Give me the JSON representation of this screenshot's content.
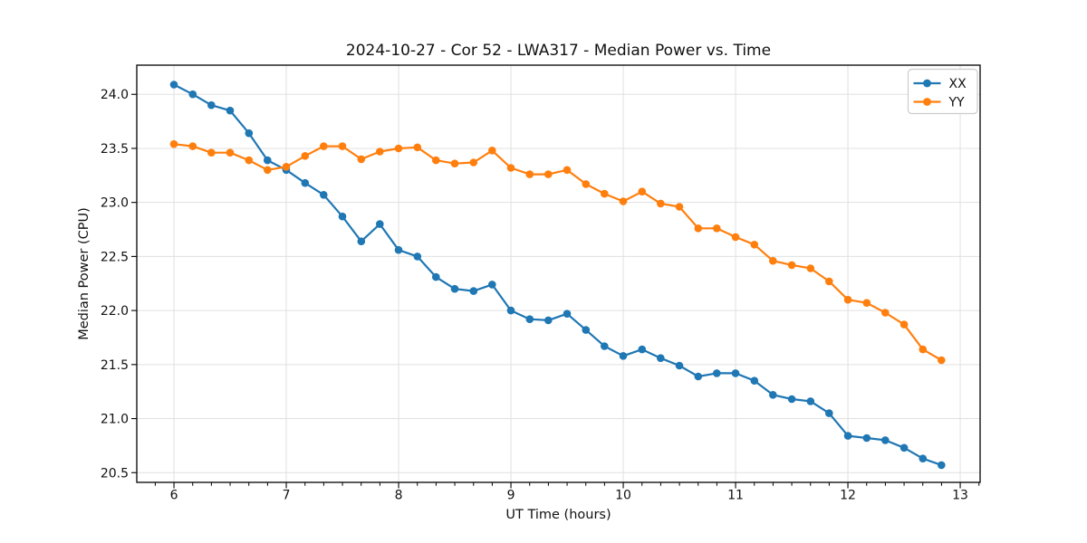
{
  "chart_data": {
    "type": "line",
    "title": "2024-10-27 - Cor 52 - LWA317 - Median Power vs. Time",
    "xlabel": "UT Time (hours)",
    "ylabel": "Median Power (CPU)",
    "xlim": [
      5.669,
      13.177
    ],
    "ylim": [
      20.41,
      24.27
    ],
    "xticks": [
      6,
      7,
      8,
      9,
      10,
      11,
      12,
      13
    ],
    "yticks": [
      20.5,
      21.0,
      21.5,
      22.0,
      22.5,
      23.0,
      23.5,
      24.0
    ],
    "x_minor_step": 0.16667,
    "grid": true,
    "legend": {
      "position": "upper right"
    },
    "x": [
      6.0,
      6.167,
      6.333,
      6.5,
      6.667,
      6.833,
      7.0,
      7.167,
      7.333,
      7.5,
      7.667,
      7.833,
      8.0,
      8.167,
      8.333,
      8.5,
      8.667,
      8.833,
      9.0,
      9.167,
      9.333,
      9.5,
      9.667,
      9.833,
      10.0,
      10.167,
      10.333,
      10.5,
      10.667,
      10.833,
      11.0,
      11.167,
      11.333,
      11.5,
      11.667,
      11.833,
      12.0,
      12.167,
      12.333,
      12.5,
      12.667,
      12.833
    ],
    "series": [
      {
        "name": "XX",
        "color": "#1f77b4",
        "marker": "circle",
        "values": [
          24.09,
          24.0,
          23.9,
          23.85,
          23.64,
          23.39,
          23.3,
          23.18,
          23.07,
          22.87,
          22.64,
          22.8,
          22.56,
          22.5,
          22.31,
          22.2,
          22.18,
          22.24,
          22.0,
          21.92,
          21.91,
          21.97,
          21.82,
          21.67,
          21.58,
          21.64,
          21.56,
          21.49,
          21.39,
          21.42,
          21.42,
          21.35,
          21.22,
          21.18,
          21.16,
          21.05,
          20.84,
          20.82,
          20.8,
          20.73,
          20.63,
          20.57
        ]
      },
      {
        "name": "YY",
        "color": "#ff7f0e",
        "marker": "circle",
        "values": [
          23.54,
          23.52,
          23.46,
          23.46,
          23.39,
          23.3,
          23.33,
          23.43,
          23.52,
          23.52,
          23.4,
          23.47,
          23.5,
          23.51,
          23.39,
          23.36,
          23.37,
          23.48,
          23.32,
          23.26,
          23.26,
          23.3,
          23.17,
          23.08,
          23.01,
          23.1,
          22.99,
          22.96,
          22.76,
          22.76,
          22.68,
          22.61,
          22.46,
          22.42,
          22.39,
          22.27,
          22.1,
          22.07,
          21.98,
          21.87,
          21.64,
          21.54
        ]
      }
    ],
    "style": {
      "grid_color": "#e0e0e0",
      "spine_color": "#000000",
      "text_color": "#111111",
      "background": "#ffffff"
    }
  }
}
